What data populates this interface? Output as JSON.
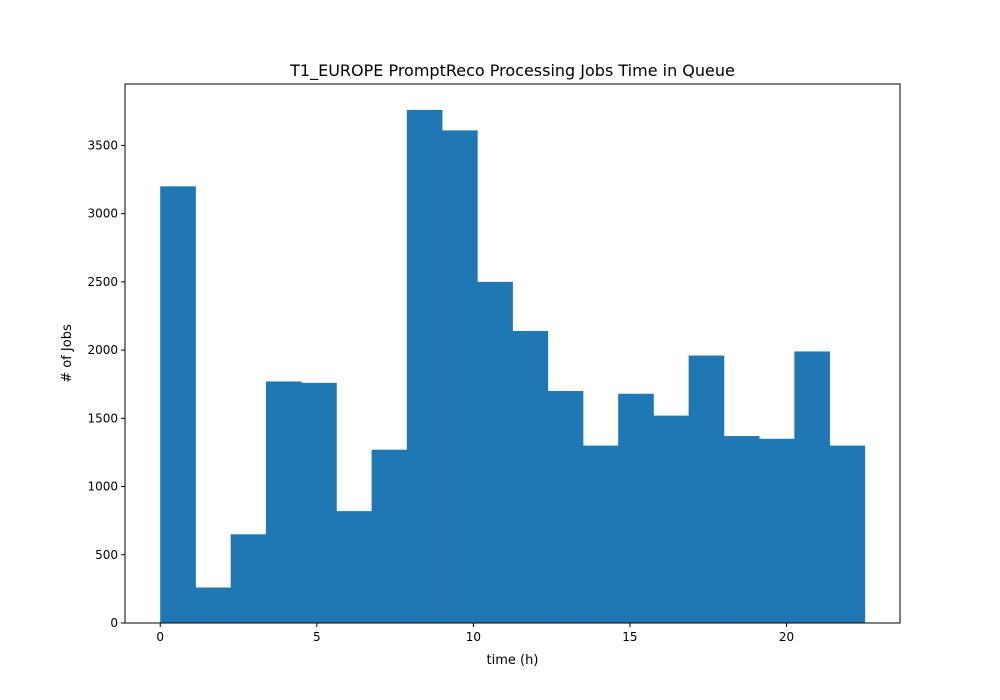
{
  "chart_data": {
    "type": "bar",
    "title": "T1_EUROPE PromptReco Processing Jobs Time in Queue",
    "xlabel": "time (h)",
    "ylabel": "# of Jobs",
    "bin_edges": [
      0,
      1.125,
      2.25,
      3.375,
      4.5,
      5.625,
      6.75,
      7.875,
      9.0,
      10.125,
      11.25,
      12.375,
      13.5,
      14.625,
      15.75,
      16.875,
      18.0,
      19.125,
      20.25,
      21.375,
      22.5
    ],
    "values": [
      3200,
      260,
      650,
      1770,
      1760,
      820,
      1270,
      3760,
      3610,
      2500,
      2140,
      1700,
      1300,
      1680,
      1520,
      1960,
      1370,
      1350,
      1990,
      1300
    ],
    "xlim": [
      -1.125,
      23.625
    ],
    "ylim": [
      0,
      3950
    ],
    "xticks": [
      0,
      5,
      10,
      15,
      20
    ],
    "yticks": [
      0,
      500,
      1000,
      1500,
      2000,
      2500,
      3000,
      3500
    ],
    "bar_color": "#1f77b4",
    "grid": false,
    "legend": "none"
  }
}
